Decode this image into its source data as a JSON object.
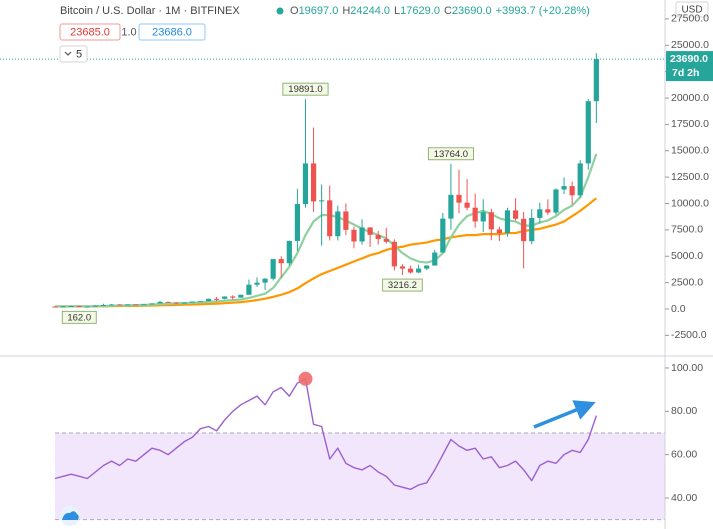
{
  "header": {
    "symbol": "Bitcoin / U.S. Dollar · 1M · BITFINEX",
    "ohlc": [
      {
        "k": "O",
        "v": "19697.0"
      },
      {
        "k": "H",
        "v": "24244.0"
      },
      {
        "k": "L",
        "v": "17629.0"
      },
      {
        "k": "C",
        "v": "23690.0"
      }
    ],
    "change": "+3993.7 (+20.28%)",
    "sell": "23685.0",
    "spread": "1.0",
    "buy": "23686.0",
    "indicators_count": "5",
    "currency": "USD"
  },
  "chart_data": [
    {
      "type": "candlestick",
      "up_color": "#26a69a",
      "down_color": "#ef5350",
      "open": [
        236,
        230,
        263,
        284,
        230,
        236,
        314,
        377,
        430,
        369,
        437,
        416,
        448,
        531,
        673,
        624,
        575,
        609,
        700,
        742,
        966,
        965,
        1190,
        1080,
        1350,
        2300,
        2500,
        2870,
        4730,
        4340,
        6450,
        9950,
        13800,
        10200,
        10300,
        6900,
        9250,
        7500,
        6400,
        7730,
        7030,
        6630,
        6370,
        4040,
        3830,
        3460,
        3830,
        4120,
        5350,
        8570,
        10820,
        10080,
        9600,
        8300,
        9170,
        7550,
        7200,
        9350,
        8550,
        6430,
        8630,
        9450,
        9140,
        11330,
        11650,
        10780,
        13800,
        19697
      ],
      "high": [
        247,
        268,
        315,
        287,
        245,
        334,
        502,
        469,
        465,
        448,
        440,
        468,
        550,
        780,
        704,
        631,
        630,
        718,
        755,
        980,
        1150,
        1200,
        1300,
        1350,
        2790,
        3000,
        2930,
        4760,
        5000,
        6470,
        11400,
        19891,
        17200,
        11800,
        11700,
        9800,
        10000,
        7800,
        8500,
        7760,
        7400,
        7700,
        6600,
        4250,
        4100,
        4200,
        4150,
        5600,
        9100,
        13764,
        13200,
        12320,
        10950,
        10400,
        9500,
        7800,
        9600,
        10500,
        9200,
        9480,
        10080,
        10400,
        11440,
        12470,
        12070,
        14100,
        19900,
        24244
      ],
      "low": [
        228,
        220,
        253,
        162,
        225,
        236,
        300,
        347,
        352,
        364,
        394,
        412,
        440,
        526,
        605,
        470,
        570,
        604,
        690,
        740,
        750,
        920,
        890,
        1070,
        1350,
        2100,
        1810,
        2700,
        2970,
        4120,
        5500,
        9600,
        9200,
        6000,
        6500,
        6500,
        7000,
        5750,
        6100,
        5880,
        6100,
        6200,
        3650,
        3216.2,
        3350,
        3400,
        3700,
        4100,
        5350,
        7500,
        9060,
        9350,
        7700,
        7300,
        6520,
        6430,
        6850,
        8400,
        3850,
        6150,
        8100,
        8900,
        8950,
        10900,
        9900,
        10540,
        13200,
        17629
      ],
      "close": [
        230,
        263,
        284,
        230,
        236,
        314,
        377,
        430,
        369,
        437,
        416,
        448,
        531,
        673,
        624,
        575,
        609,
        700,
        742,
        966,
        965,
        1190,
        1080,
        1350,
        2300,
        2500,
        2870,
        4730,
        4340,
        6450,
        9950,
        13800,
        10200,
        10300,
        6900,
        9250,
        7500,
        6400,
        7730,
        7030,
        6630,
        6370,
        4040,
        3830,
        3460,
        3830,
        4120,
        5350,
        8570,
        10820,
        10080,
        9600,
        8300,
        9170,
        7550,
        7200,
        9350,
        8550,
        6430,
        8630,
        9450,
        9140,
        11330,
        11650,
        10780,
        13800,
        19696.3,
        23690
      ],
      "high_labels": [
        null,
        null,
        null,
        null,
        null,
        null,
        null,
        null,
        null,
        null,
        null,
        null,
        null,
        null,
        null,
        null,
        null,
        null,
        null,
        null,
        null,
        null,
        null,
        null,
        null,
        null,
        null,
        null,
        null,
        null,
        null,
        "19891.0",
        null,
        null,
        null,
        null,
        null,
        null,
        null,
        null,
        null,
        null,
        null,
        null,
        null,
        null,
        null,
        null,
        null,
        "13764.0",
        null,
        null,
        null,
        null,
        null,
        null,
        null,
        null,
        null,
        null,
        null,
        null,
        null,
        null,
        null,
        null,
        null,
        null
      ],
      "low_labels": [
        null,
        null,
        null,
        "162.0",
        null,
        null,
        null,
        null,
        null,
        null,
        null,
        null,
        null,
        null,
        null,
        null,
        null,
        null,
        null,
        null,
        null,
        null,
        null,
        null,
        null,
        null,
        null,
        null,
        null,
        null,
        null,
        null,
        null,
        null,
        null,
        null,
        null,
        null,
        null,
        null,
        null,
        null,
        null,
        "3216.2",
        null,
        null,
        null,
        null,
        null,
        null,
        null,
        null,
        null,
        null,
        null,
        null,
        null,
        null,
        null,
        null,
        null,
        null,
        null,
        null,
        null,
        null,
        null,
        null
      ],
      "overlays": [
        {
          "color": "#ff9800",
          "values": [
            240,
            240,
            242,
            245,
            245,
            250,
            260,
            270,
            280,
            290,
            300,
            315,
            330,
            350,
            370,
            390,
            410,
            430,
            450,
            480,
            510,
            550,
            600,
            650,
            740,
            850,
            980,
            1150,
            1350,
            1600,
            1950,
            2450,
            2900,
            3300,
            3600,
            3900,
            4200,
            4500,
            4800,
            5100,
            5300,
            5600,
            5800,
            5900,
            6100,
            6200,
            6300,
            6500,
            6600,
            6800,
            6900,
            7000,
            7000,
            7100,
            7100,
            7100,
            7200,
            7200,
            7400,
            7500,
            7600,
            7800,
            8000,
            8300,
            8800,
            9300,
            9900,
            10500
          ]
        },
        {
          "color": "#8fd19e",
          "values": [
            250,
            250,
            255,
            260,
            255,
            260,
            280,
            310,
            330,
            350,
            370,
            390,
            420,
            460,
            500,
            530,
            560,
            590,
            620,
            680,
            720,
            780,
            840,
            900,
            1050,
            1250,
            1450,
            2000,
            3000,
            4000,
            5300,
            7000,
            8300,
            8900,
            8900,
            8700,
            8400,
            8000,
            7600,
            7300,
            7000,
            6700,
            6000,
            5300,
            4800,
            4500,
            4400,
            4600,
            5300,
            6800,
            8000,
            8800,
            9100,
            9300,
            9000,
            8600,
            8400,
            8300,
            7900,
            7900,
            8200,
            8400,
            8800,
            9400,
            9800,
            10600,
            12500,
            14700
          ]
        }
      ],
      "last_price_label": "23690.0",
      "countdown": "7d 2h",
      "last_price_color": "#26a69a",
      "ylim": [
        -4360,
        29290
      ],
      "yticks": [
        {
          "value": -2500,
          "label": "-2500.0"
        },
        {
          "value": 0,
          "label": "0.0"
        },
        {
          "value": 2500,
          "label": "2500.0"
        },
        {
          "value": 5000,
          "label": "5000.0"
        },
        {
          "value": 7500,
          "label": "7500.0"
        },
        {
          "value": 10000,
          "label": "10000.0"
        },
        {
          "value": 12500,
          "label": "12500.0"
        },
        {
          "value": 15000,
          "label": "15000.0"
        },
        {
          "value": 17500,
          "label": "17500.0"
        },
        {
          "value": 20000,
          "label": "20000.0"
        },
        {
          "value": 22500,
          "label": "22500.0"
        },
        {
          "value": 25000,
          "label": "25000.0"
        },
        {
          "value": 27500,
          "label": "27500.0"
        }
      ],
      "grid": false
    },
    {
      "type": "line",
      "color": "#9c5fd0",
      "values": [
        49,
        50,
        51,
        50,
        49,
        52,
        55,
        57,
        55,
        58,
        57,
        60,
        63,
        62,
        60,
        63,
        66,
        68,
        72,
        73,
        71,
        76,
        80,
        83,
        85,
        87,
        83,
        89,
        91,
        87,
        93,
        95,
        74,
        73,
        58,
        63,
        56,
        54,
        53,
        55,
        52,
        50,
        46,
        45,
        44,
        46,
        47,
        53,
        60,
        67,
        64,
        62,
        63,
        58,
        59,
        54,
        55,
        57,
        53,
        48,
        55,
        57,
        56,
        60,
        62,
        61,
        67,
        78
      ],
      "band": {
        "lower": 30,
        "upper": 70,
        "color": "#f1e6fb"
      },
      "ylim": [
        25.7,
        104.6
      ],
      "yticks": [
        {
          "value": 40,
          "label": "40.00"
        },
        {
          "value": 60,
          "label": "60.00"
        },
        {
          "value": 80,
          "label": "80.00"
        },
        {
          "value": 100,
          "label": "100.00"
        }
      ],
      "grid": false
    }
  ]
}
